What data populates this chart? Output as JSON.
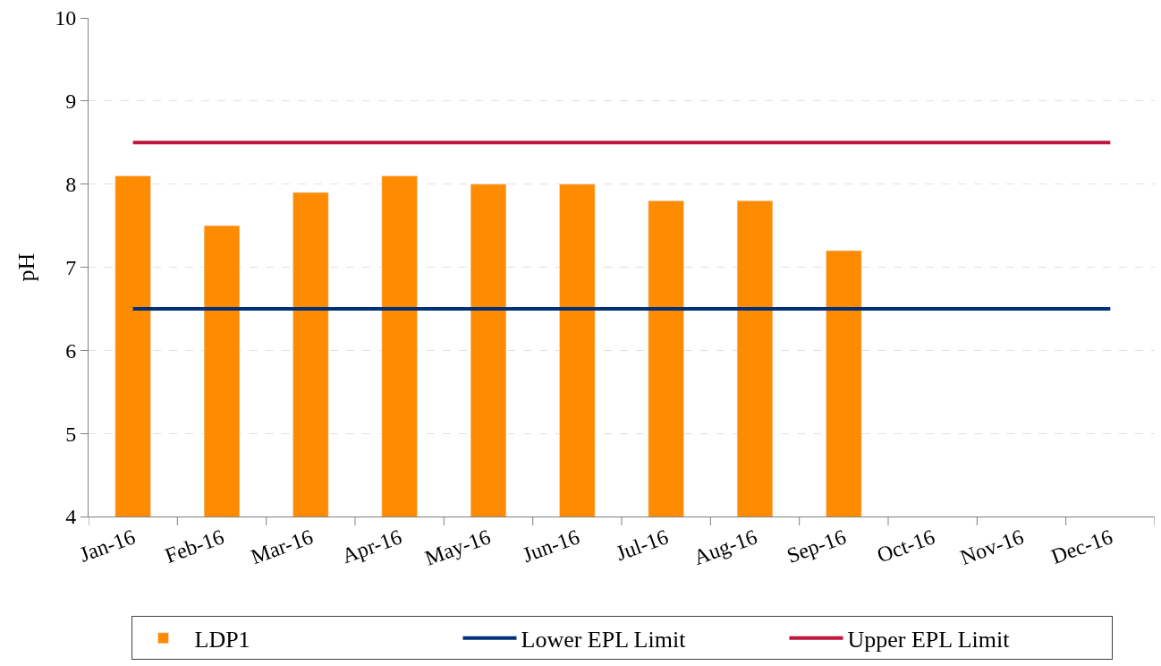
{
  "chart_data": {
    "type": "bar",
    "ylabel": "pH",
    "categories": [
      "Jan-16",
      "Feb-16",
      "Mar-16",
      "Apr-16",
      "May-16",
      "Jun-16",
      "Jul-16",
      "Aug-16",
      "Sep-16",
      "Oct-16",
      "Nov-16",
      "Dec-16"
    ],
    "series": [
      {
        "name": "LDP1",
        "color": "#ff8c00",
        "values": [
          8.1,
          7.5,
          7.9,
          8.1,
          8.0,
          8.0,
          7.8,
          7.8,
          7.2,
          null,
          null,
          null
        ]
      },
      {
        "name": "Lower EPL Limit",
        "type": "line",
        "color": "#003078",
        "values": [
          6.5,
          6.5,
          6.5,
          6.5,
          6.5,
          6.5,
          6.5,
          6.5,
          6.5,
          6.5,
          6.5,
          6.5
        ]
      },
      {
        "name": "Upper EPL Limit",
        "type": "line",
        "color": "#c0143c",
        "values": [
          8.5,
          8.5,
          8.5,
          8.5,
          8.5,
          8.5,
          8.5,
          8.5,
          8.5,
          8.5,
          8.5,
          8.5
        ]
      }
    ],
    "ylim": [
      4,
      10
    ],
    "yticks": [
      4,
      5,
      6,
      7,
      8,
      9,
      10
    ],
    "grid": "y",
    "legend": "bottom",
    "marker": "none",
    "line_style": "solid"
  }
}
